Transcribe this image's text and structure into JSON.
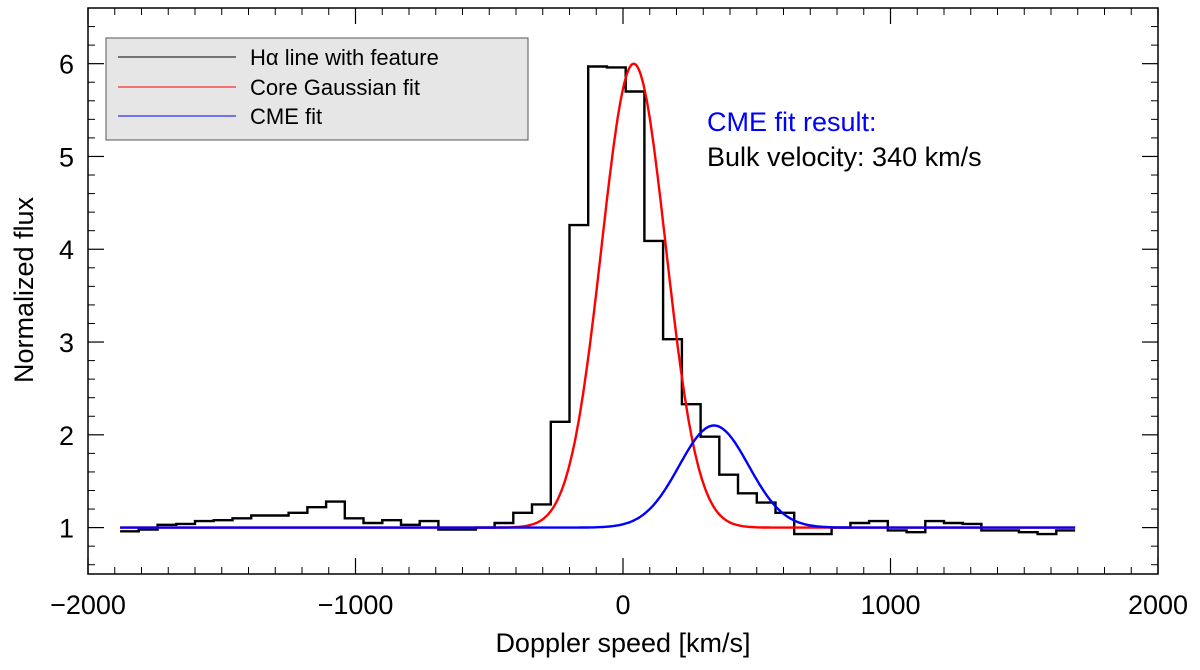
{
  "chart_data": {
    "type": "line",
    "title": "",
    "xlabel": "Doppler speed [km/s]",
    "ylabel": "Normalized flux",
    "xlim": [
      -2000,
      2000
    ],
    "ylim": [
      0.5,
      6.6
    ],
    "xticks": [
      -2000,
      -1000,
      0,
      1000,
      2000
    ],
    "xtick_labels": [
      "−2000",
      "−1000",
      "0",
      "1000",
      "2000"
    ],
    "yticks": [
      1,
      2,
      3,
      4,
      5,
      6
    ],
    "ytick_labels": [
      "1",
      "2",
      "3",
      "4",
      "5",
      "6"
    ],
    "legend": {
      "placement": "top-left",
      "entries": [
        {
          "label": "Hα line with feature",
          "color": "#000000"
        },
        {
          "label": "Core Gaussian fit",
          "color": "#ff0000"
        },
        {
          "label": "CME fit",
          "color": "#0000ff"
        }
      ]
    },
    "annotations": {
      "title": "CME fit result:",
      "title_color": "#0000ff",
      "text": "Bulk velocity: 340 km/s",
      "text_color": "#000000"
    },
    "series": [
      {
        "name": "Hα line with feature",
        "style": "steps",
        "color": "#000000",
        "bin_edges": [
          -1880,
          -1810,
          -1740,
          -1670,
          -1600,
          -1530,
          -1460,
          -1390,
          -1320,
          -1250,
          -1180,
          -1110,
          -1040,
          -970,
          -900,
          -830,
          -760,
          -690,
          -620,
          -550,
          -480,
          -410,
          -340,
          -270,
          -200,
          -130,
          -60,
          10,
          80,
          150,
          220,
          290,
          360,
          430,
          500,
          570,
          640,
          710,
          780,
          850,
          920,
          990,
          1060,
          1130,
          1200,
          1270,
          1340,
          1410,
          1480,
          1550,
          1620,
          1690
        ],
        "values": [
          0.96,
          0.98,
          1.03,
          1.04,
          1.07,
          1.08,
          1.1,
          1.13,
          1.13,
          1.16,
          1.22,
          1.28,
          1.1,
          1.05,
          1.08,
          1.03,
          1.07,
          0.98,
          0.98,
          1.0,
          1.05,
          1.16,
          1.25,
          2.14,
          4.26,
          5.97,
          5.96,
          5.7,
          4.09,
          3.03,
          2.33,
          1.98,
          1.57,
          1.37,
          1.27,
          1.16,
          0.93,
          0.93,
          1.0,
          1.05,
          1.07,
          0.97,
          0.95,
          1.07,
          1.05,
          1.04,
          0.97,
          0.97,
          0.95,
          0.93,
          0.97
        ]
      },
      {
        "name": "Core Gaussian fit",
        "style": "gaussian",
        "color": "#ff0000",
        "baseline": 1.0,
        "amplitude": 5.0,
        "center": 40,
        "sigma": 120,
        "x_range": [
          -1880,
          1690
        ]
      },
      {
        "name": "CME fit",
        "style": "gaussian",
        "color": "#0000ff",
        "baseline": 1.0,
        "amplitude": 1.1,
        "center": 340,
        "sigma": 130,
        "x_range": [
          -1880,
          1690
        ]
      }
    ]
  }
}
